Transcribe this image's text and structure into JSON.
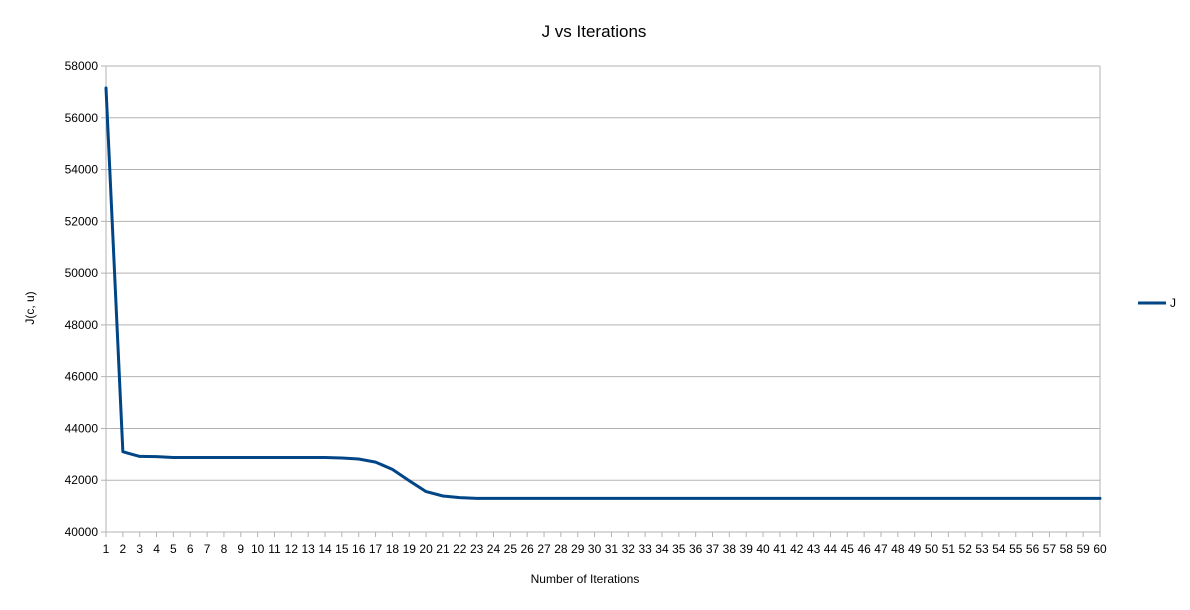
{
  "chart_data": {
    "type": "line",
    "title": "J vs Iterations",
    "xlabel": "Number of Iterations",
    "ylabel": "J(c, u)",
    "ylim": [
      40000,
      58000
    ],
    "yticks": [
      40000,
      42000,
      44000,
      46000,
      48000,
      50000,
      52000,
      54000,
      56000,
      58000
    ],
    "grid": true,
    "legend_position": "right",
    "categories": [
      "1",
      "2",
      "3",
      "4",
      "5",
      "6",
      "7",
      "8",
      "9",
      "10",
      "11",
      "12",
      "13",
      "14",
      "15",
      "16",
      "17",
      "18",
      "19",
      "20",
      "21",
      "22",
      "23",
      "24",
      "25",
      "26",
      "27",
      "28",
      "29",
      "30",
      "31",
      "32",
      "33",
      "34",
      "35",
      "36",
      "37",
      "38",
      "39",
      "40",
      "41",
      "42",
      "43",
      "44",
      "45",
      "46",
      "47",
      "48",
      "49",
      "50",
      "51",
      "52",
      "53",
      "54",
      "55",
      "56",
      "57",
      "58",
      "59",
      "60"
    ],
    "series": [
      {
        "name": "J",
        "color": "#004586",
        "values": [
          57150,
          43100,
          42920,
          42910,
          42880,
          42880,
          42880,
          42880,
          42880,
          42880,
          42880,
          42880,
          42880,
          42880,
          42860,
          42820,
          42700,
          42420,
          41980,
          41560,
          41390,
          41330,
          41300,
          41300,
          41300,
          41300,
          41300,
          41300,
          41300,
          41300,
          41300,
          41300,
          41300,
          41300,
          41300,
          41300,
          41300,
          41300,
          41300,
          41300,
          41300,
          41300,
          41300,
          41300,
          41300,
          41300,
          41300,
          41300,
          41300,
          41300,
          41300,
          41300,
          41300,
          41300,
          41300,
          41300,
          41300,
          41300,
          41300,
          41300
        ]
      }
    ]
  }
}
